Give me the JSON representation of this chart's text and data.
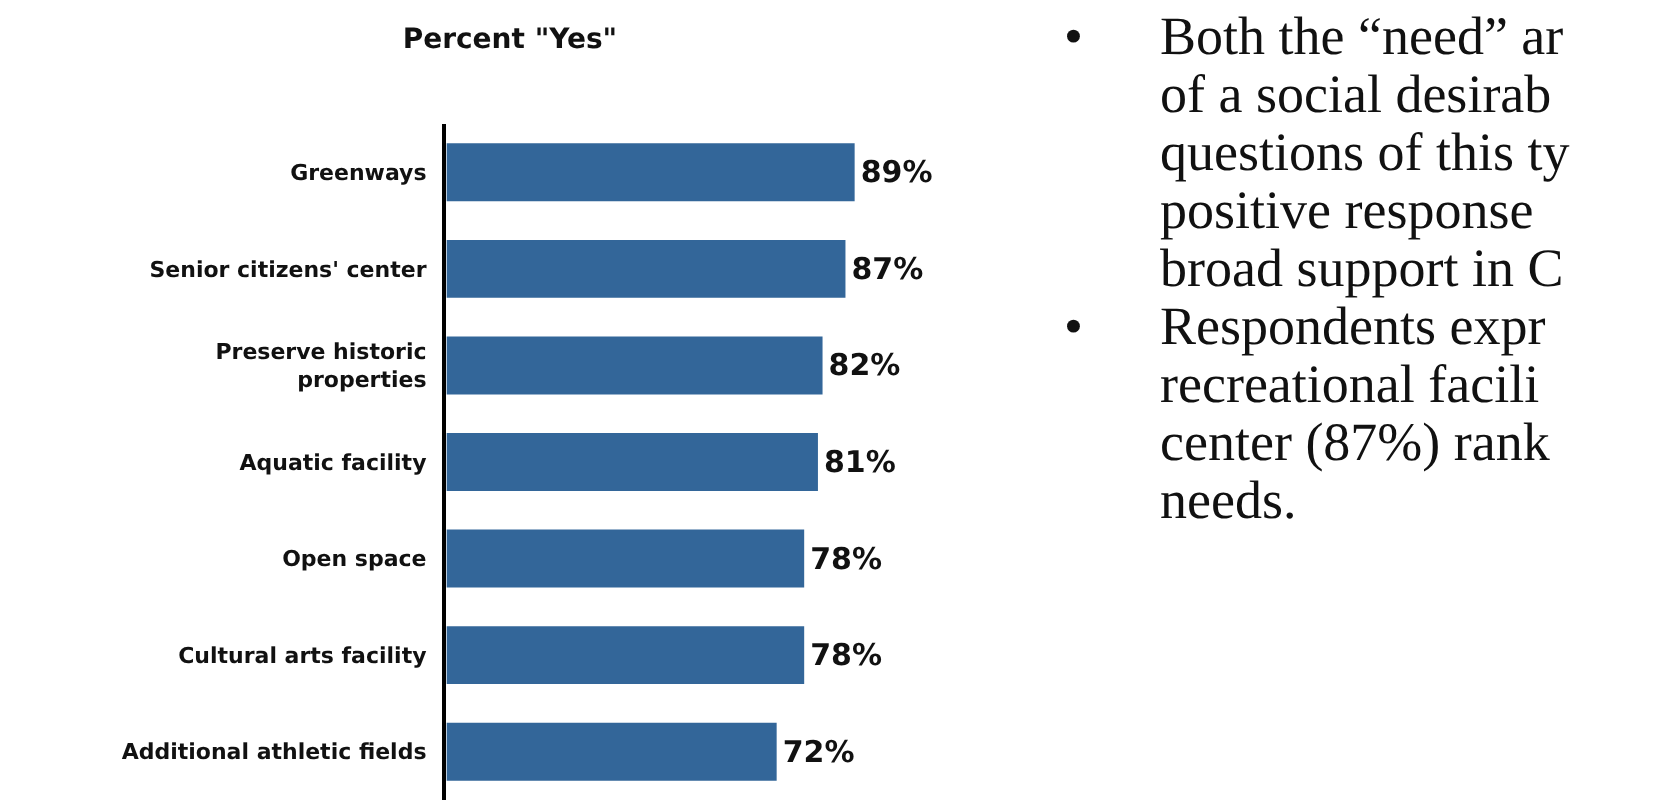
{
  "chart_data": {
    "type": "bar",
    "orientation": "horizontal",
    "title": "Percent \"Yes\"",
    "categories": [
      "Greenways",
      "Senior citizens' center",
      "Preserve historic\nproperties",
      "Aquatic facility",
      "Open space",
      "Cultural arts facility",
      "Additional athletic fields"
    ],
    "values": [
      89,
      87,
      82,
      81,
      78,
      78,
      72
    ],
    "value_labels": [
      "89%",
      "87%",
      "82%",
      "81%",
      "78%",
      "78%",
      "72%"
    ],
    "color": "#336699",
    "tick_labels": "y",
    "legend": false,
    "annotations": [
      "• Both the “need” ar\nof a social desirab\nquestions of this ty\npositive response\nbroad support in C",
      "• Respondents expr\nrecreational facili\ncenter (87%) rank\nneeds."
    ]
  }
}
